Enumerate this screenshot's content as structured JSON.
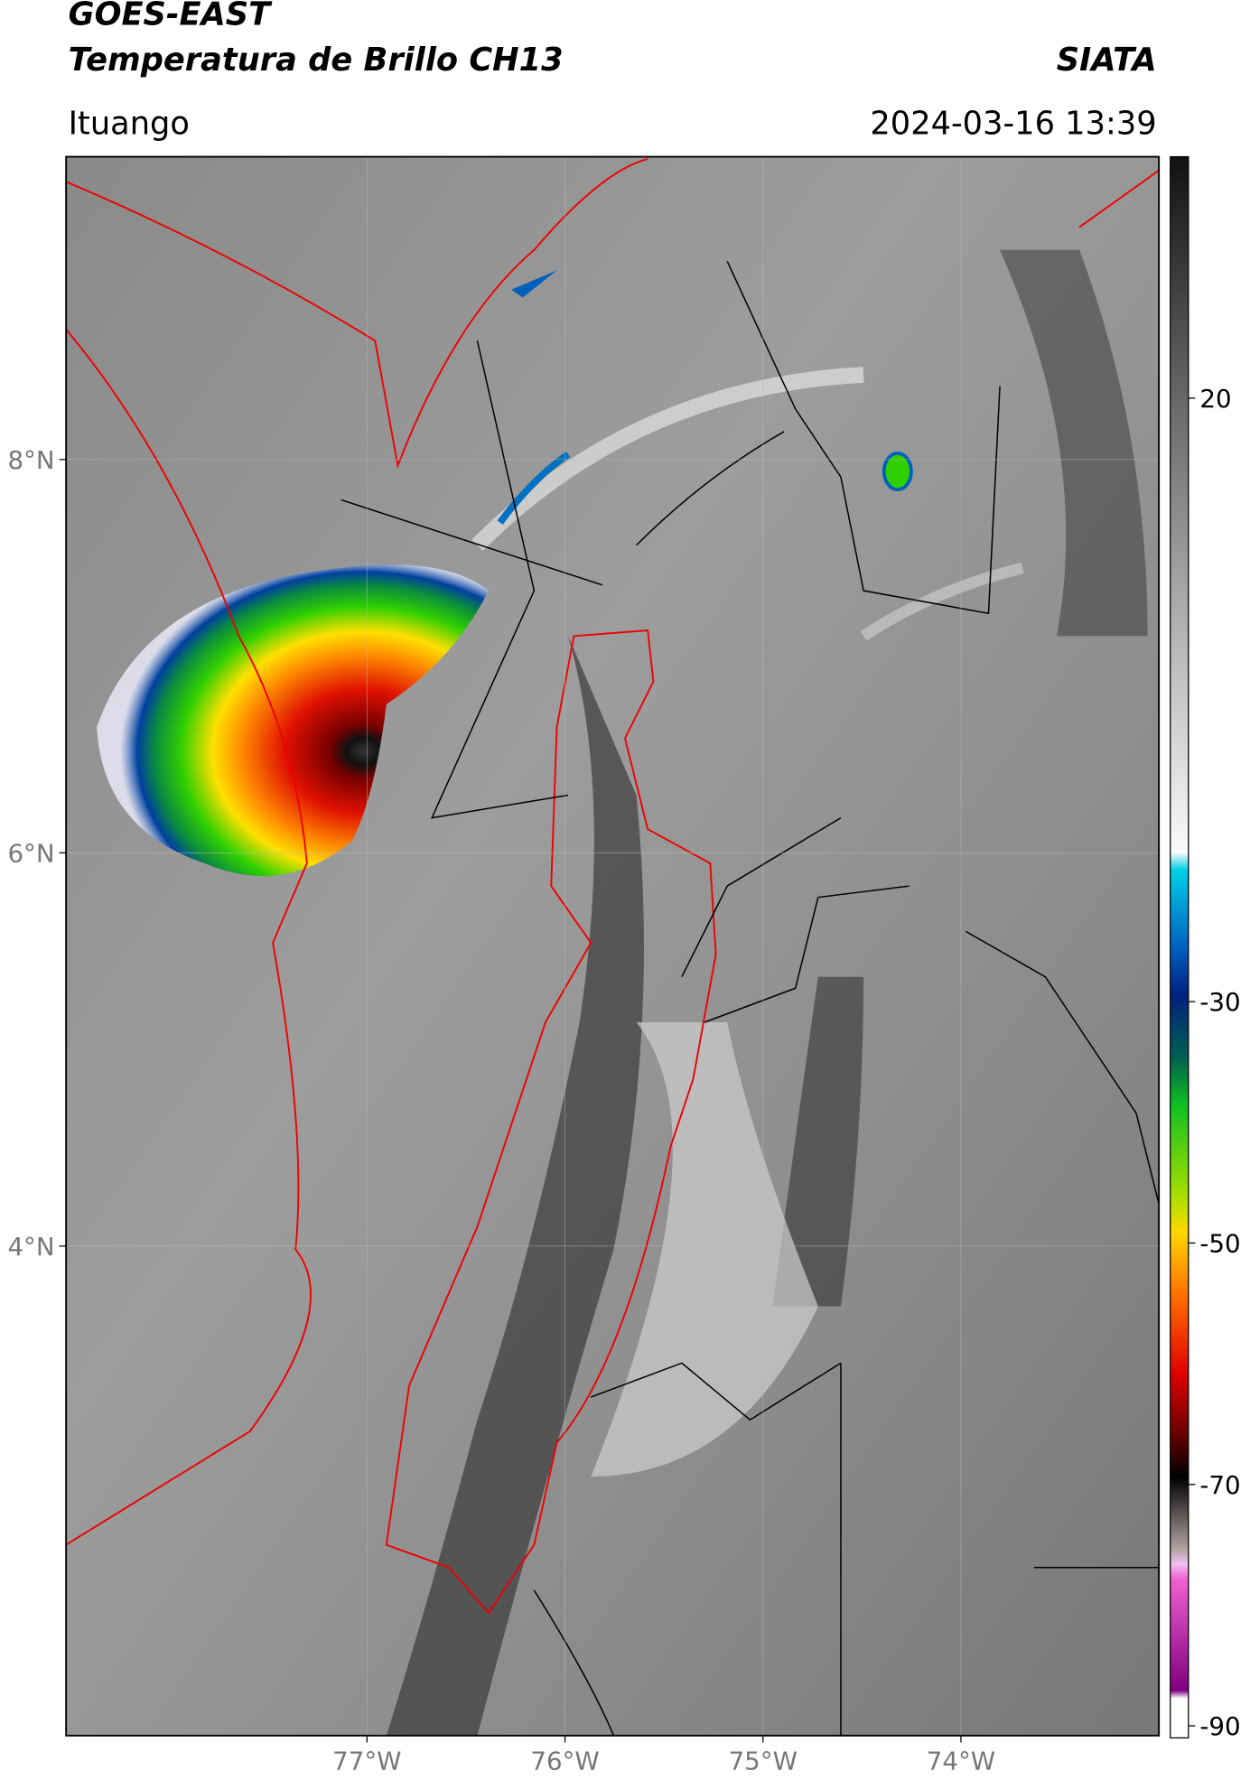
{
  "header": {
    "title": "GOES-EAST",
    "subtitle": "Temperatura de Brillo CH13",
    "source": "SIATA",
    "location": "Ituango",
    "datetime": "2024-03-16 13:39"
  },
  "map": {
    "xlim": [
      -78.52,
      -73.0
    ],
    "ylim": [
      1.51,
      9.54
    ],
    "xticks": [
      {
        "value": -77,
        "label": "77°W"
      },
      {
        "value": -76,
        "label": "76°W"
      },
      {
        "value": -75,
        "label": "75°W"
      },
      {
        "value": -74,
        "label": "74°W"
      }
    ],
    "yticks": [
      {
        "value": 8,
        "label": "8°N"
      },
      {
        "value": 6,
        "label": "6°N"
      },
      {
        "value": 4,
        "label": "4°N"
      }
    ]
  },
  "colorbar": {
    "lim": [
      -91,
      40
    ],
    "ticks": [
      20,
      -30,
      -50,
      -70,
      -90
    ]
  }
}
